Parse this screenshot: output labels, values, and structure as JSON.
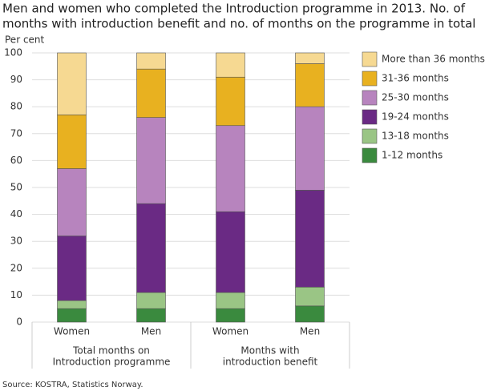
{
  "chart_data": {
    "type": "stacked-bar",
    "title": [
      "Men and women who completed the Introduction programme in 2013. No. of",
      "months with introduction benefit and no. of months on the programme in total"
    ],
    "y_label": "Per cent",
    "categories": [
      "Women",
      "Men",
      "Women",
      "Men"
    ],
    "groups": [
      {
        "lines": [
          "Total months on",
          "Introduction programme"
        ],
        "size": 2
      },
      {
        "lines": [
          "Months with",
          "introduction benefit"
        ],
        "size": 2
      }
    ],
    "series": [
      {
        "name": "1-12 months",
        "color": "#3a8a3e",
        "values": [
          5,
          5,
          5,
          6
        ]
      },
      {
        "name": "13-18 months",
        "color": "#9ac585",
        "values": [
          3,
          6,
          6,
          7
        ]
      },
      {
        "name": "19-24 months",
        "color": "#6a2a84",
        "values": [
          24,
          33,
          30,
          36
        ]
      },
      {
        "name": "25-30 months",
        "color": "#b784be",
        "values": [
          25,
          32,
          32,
          31
        ]
      },
      {
        "name": "31-36 months",
        "color": "#e8b120",
        "values": [
          20,
          18,
          18,
          16
        ]
      },
      {
        "name": "More than 36 months",
        "color": "#f6d992",
        "values": [
          23,
          6,
          9,
          4
        ]
      }
    ],
    "ylim": [
      0,
      100
    ],
    "yticks": [
      0,
      10,
      20,
      30,
      40,
      50,
      60,
      70,
      80,
      90,
      100
    ],
    "grid": true,
    "legend": "right",
    "source": "Source: KOSTRA, Statistics Norway."
  }
}
